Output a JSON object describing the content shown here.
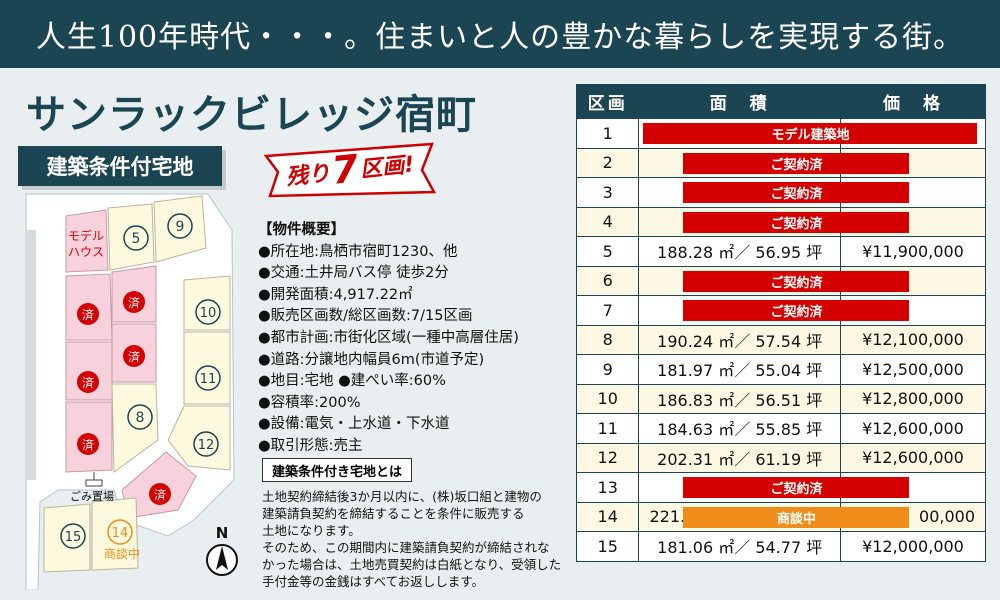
{
  "banner": {
    "text": "人生100年時代・・・。住まいと人の豊かな暮らしを実現する街。"
  },
  "title": "サンラックビレッジ宿町",
  "tag": "建築条件付宅地",
  "burst": {
    "prefix": "残り",
    "number": "7",
    "suffix": "区画!"
  },
  "map": {
    "lots": [
      {
        "id": "model",
        "label1": "モデル",
        "label2": "ハウス"
      },
      {
        "id": "5",
        "label": "5"
      },
      {
        "id": "9",
        "label": "9"
      },
      {
        "id": "10",
        "label": "10"
      },
      {
        "id": "11",
        "label": "11"
      },
      {
        "id": "8",
        "label": "8"
      },
      {
        "id": "12",
        "label": "12"
      },
      {
        "id": "15",
        "label": "15"
      },
      {
        "id": "14",
        "label": "14",
        "sub": "商談中"
      }
    ],
    "sold_mark": "済",
    "garbage_label": "ごみ置場",
    "compass_label": "N"
  },
  "overview": {
    "heading": "【物件概要】",
    "items": [
      "●所在地:鳥栖市宿町1230、他",
      "●交通:土井局バス停 徒歩2分",
      "●開発面積:4,917.22㎡",
      "●販売区画数/総区画数:7/15区画",
      "●都市計画:市街化区域(一種中高層住居)",
      "●道路:分譲地内幅員6m(市道予定)",
      "●地目:宅地 ●建ぺい率:60%",
      "●容積率:200%",
      "●設備:電気・上水道・下水道",
      "●取引形態:売主"
    ]
  },
  "condition": {
    "heading": "建築条件付き宅地とは",
    "lines": [
      "土地契約締結後3か月以内に、(株)坂口組と建物の",
      "建築請負契約を締結することを条件に販売する",
      "土地になります。",
      "そのため、この期間内に建築請負契約が締結されな",
      "かった場合は、土地売買契約は白紙となり、受領した",
      "手付金等の金銭はすべてお返しします。"
    ]
  },
  "table": {
    "headers": [
      "区画",
      "面　積",
      "価　格"
    ],
    "rows": [
      {
        "num": "1",
        "status": "モデル建築地"
      },
      {
        "num": "2",
        "status": "ご契約済"
      },
      {
        "num": "3",
        "status": "ご契約済"
      },
      {
        "num": "4",
        "status": "ご契約済"
      },
      {
        "num": "5",
        "area": "188.28 ㎡／ 56.95 坪",
        "price": "¥11,900,000"
      },
      {
        "num": "6",
        "status": "ご契約済"
      },
      {
        "num": "7",
        "status": "ご契約済"
      },
      {
        "num": "8",
        "area": "190.24 ㎡／ 57.54 坪",
        "price": "¥12,100,000"
      },
      {
        "num": "9",
        "area": "181.97 ㎡／ 55.04 坪",
        "price": "¥12,500,000"
      },
      {
        "num": "10",
        "area": "186.83 ㎡／ 56.51 坪",
        "price": "¥12,800,000"
      },
      {
        "num": "11",
        "area": "184.63 ㎡／ 55.85 坪",
        "price": "¥12,600,000"
      },
      {
        "num": "12",
        "area": "202.31 ㎡／ 61.19 坪",
        "price": "¥12,600,000"
      },
      {
        "num": "13",
        "status": "ご契約済"
      },
      {
        "num": "14",
        "area": "221.",
        "price": "00,000",
        "status": "商談中"
      },
      {
        "num": "15",
        "area": "181.06 ㎡／ 54.77 坪",
        "price": "¥12,000,000"
      }
    ]
  },
  "colors": {
    "navy": "#1c4553",
    "red": "#d40000",
    "orange": "#f08c19",
    "pink": "#f7d2dc"
  }
}
